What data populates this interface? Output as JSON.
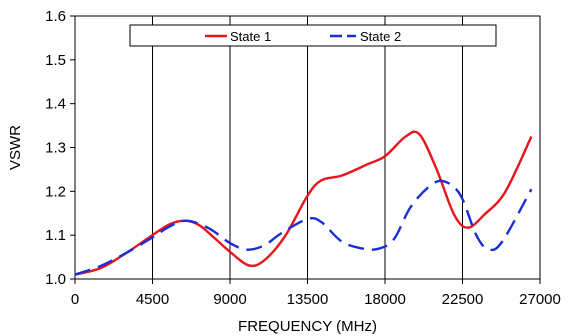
{
  "chart_data": {
    "type": "line",
    "xlabel": "FREQUENCY (MHz)",
    "ylabel": "VSWR",
    "xlim": [
      0,
      27000
    ],
    "ylim": [
      1.0,
      1.6
    ],
    "x_ticks": [
      0,
      4500,
      9000,
      13500,
      18000,
      22500,
      27000
    ],
    "x_tick_labels": [
      "0",
      "4500",
      "9000",
      "13500",
      "18000",
      "22500",
      "27000"
    ],
    "y_ticks": [
      1.0,
      1.1,
      1.2,
      1.3,
      1.4,
      1.5,
      1.6
    ],
    "y_tick_labels": [
      "1.0",
      "1.1",
      "1.2",
      "1.3",
      "1.4",
      "1.5",
      "1.6"
    ],
    "grid": "vertical",
    "legend_position": "top",
    "series": [
      {
        "name": "State 1",
        "color": "#e8141b",
        "dash": "solid",
        "points": [
          [
            0,
            1.01
          ],
          [
            1500,
            1.025
          ],
          [
            3000,
            1.06
          ],
          [
            4500,
            1.1
          ],
          [
            5500,
            1.125
          ],
          [
            6400,
            1.133
          ],
          [
            7200,
            1.123
          ],
          [
            8000,
            1.097
          ],
          [
            9000,
            1.062
          ],
          [
            10100,
            1.031
          ],
          [
            11000,
            1.043
          ],
          [
            12200,
            1.098
          ],
          [
            13500,
            1.19
          ],
          [
            14300,
            1.225
          ],
          [
            15500,
            1.236
          ],
          [
            17000,
            1.262
          ],
          [
            18000,
            1.28
          ],
          [
            19200,
            1.325
          ],
          [
            20000,
            1.33
          ],
          [
            21000,
            1.25
          ],
          [
            22000,
            1.148
          ],
          [
            22800,
            1.117
          ],
          [
            23800,
            1.148
          ],
          [
            25000,
            1.2
          ],
          [
            26500,
            1.325
          ]
        ]
      },
      {
        "name": "State 2",
        "color": "#1a2fd6",
        "dash": "dashed",
        "points": [
          [
            0,
            1.01
          ],
          [
            1500,
            1.03
          ],
          [
            3000,
            1.06
          ],
          [
            4500,
            1.095
          ],
          [
            5500,
            1.12
          ],
          [
            6500,
            1.133
          ],
          [
            7800,
            1.115
          ],
          [
            9000,
            1.082
          ],
          [
            10000,
            1.067
          ],
          [
            11000,
            1.077
          ],
          [
            12000,
            1.105
          ],
          [
            13500,
            1.137
          ],
          [
            14300,
            1.13
          ],
          [
            15400,
            1.088
          ],
          [
            16400,
            1.072
          ],
          [
            17500,
            1.068
          ],
          [
            18500,
            1.09
          ],
          [
            19500,
            1.165
          ],
          [
            20700,
            1.215
          ],
          [
            21500,
            1.222
          ],
          [
            22400,
            1.19
          ],
          [
            23300,
            1.1
          ],
          [
            24000,
            1.068
          ],
          [
            24800,
            1.085
          ],
          [
            26500,
            1.205
          ]
        ]
      }
    ]
  }
}
